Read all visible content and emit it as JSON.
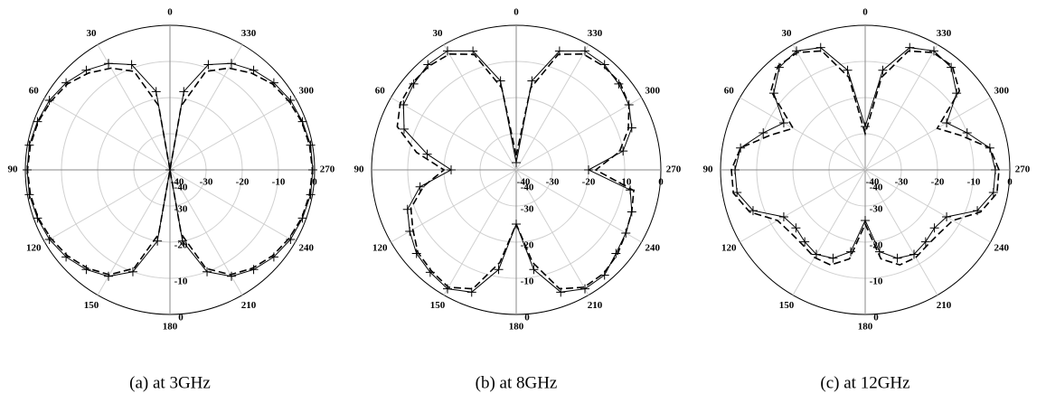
{
  "chart_data": [
    {
      "type": "polar",
      "caption": "(a) at 3GHz",
      "rlim": [
        -40,
        0
      ],
      "rticks": [
        -40,
        -30,
        -20,
        -10,
        0
      ],
      "angle_ticks": [
        0,
        30,
        60,
        90,
        120,
        150,
        180,
        210,
        240,
        270,
        300,
        330
      ],
      "direction": "counterclockwise",
      "theta": [
        0,
        10,
        20,
        30,
        40,
        50,
        60,
        70,
        80,
        90,
        100,
        110,
        120,
        130,
        140,
        150,
        160,
        170,
        180,
        190,
        200,
        210,
        220,
        230,
        240,
        250,
        260,
        270,
        280,
        290,
        300,
        310,
        320,
        330,
        340,
        350
      ],
      "series": [
        {
          "color": "#000000",
          "marker": "+",
          "dash": false,
          "values": [
            -40,
            -18,
            -9,
            -6,
            -4,
            -2.5,
            -1.5,
            -1,
            -0.5,
            -0.5,
            -0.5,
            -1,
            -1.5,
            -2.5,
            -4,
            -6,
            -10,
            -20,
            -40,
            -20,
            -10,
            -6,
            -4,
            -2.5,
            -1.5,
            -1,
            -0.5,
            -0.5,
            -0.5,
            -1,
            -1.5,
            -2.5,
            -4,
            -6,
            -9,
            -18
          ]
        },
        {
          "color": "#000000",
          "marker": null,
          "dash": true,
          "values": [
            -40,
            -22,
            -11,
            -7.5,
            -5,
            -3,
            -2,
            -1.2,
            -0.8,
            -0.6,
            -0.8,
            -1.2,
            -2,
            -3,
            -4.5,
            -6.5,
            -11,
            -22,
            -40,
            -22,
            -11,
            -6.5,
            -4.5,
            -3,
            -2,
            -1.2,
            -0.8,
            -0.6,
            -0.8,
            -1.2,
            -2,
            -3,
            -5,
            -7.5,
            -11,
            -22
          ]
        }
      ]
    },
    {
      "type": "polar",
      "caption": "(b) at 8GHz",
      "rlim": [
        -40,
        0
      ],
      "rticks": [
        -40,
        -30,
        -20,
        -10,
        0
      ],
      "angle_ticks": [
        0,
        30,
        60,
        90,
        120,
        150,
        180,
        210,
        240,
        270,
        300,
        330
      ],
      "direction": "counterclockwise",
      "theta": [
        0,
        10,
        20,
        30,
        40,
        50,
        60,
        70,
        80,
        90,
        100,
        110,
        120,
        130,
        140,
        150,
        160,
        170,
        180,
        190,
        200,
        210,
        220,
        230,
        240,
        250,
        260,
        270,
        280,
        290,
        300,
        310,
        320,
        330,
        340,
        350
      ],
      "series": [
        {
          "color": "#000000",
          "marker": "+",
          "dash": false,
          "values": [
            -38,
            -15,
            -5,
            -2,
            -2,
            -3,
            -4,
            -7,
            -15,
            -22,
            -13,
            -8,
            -6,
            -4,
            -3,
            -2,
            -4,
            -12,
            -25,
            -12,
            -4,
            -2,
            -2,
            -4,
            -5,
            -6,
            -8,
            -20,
            -10,
            -6,
            -4,
            -3,
            -2,
            -2,
            -5,
            -15
          ]
        },
        {
          "color": "#000000",
          "marker": null,
          "dash": true,
          "values": [
            -36,
            -17,
            -6,
            -3,
            -2.5,
            -2.5,
            -3,
            -5,
            -12,
            -20,
            -14,
            -9,
            -7,
            -4.5,
            -3.5,
            -2.5,
            -5,
            -14,
            -25,
            -14,
            -5,
            -2.5,
            -2.5,
            -3.5,
            -5,
            -6,
            -7,
            -18,
            -11,
            -7,
            -4,
            -2.5,
            -2.5,
            -3,
            -6,
            -17
          ]
        }
      ]
    },
    {
      "type": "polar",
      "caption": "(c) at 12GHz",
      "rlim": [
        -40,
        0
      ],
      "rticks": [
        -40,
        -30,
        -20,
        -10,
        0
      ],
      "angle_ticks": [
        0,
        30,
        60,
        90,
        120,
        150,
        180,
        210,
        240,
        270,
        300,
        330
      ],
      "direction": "counterclockwise",
      "theta": [
        0,
        10,
        20,
        30,
        40,
        50,
        60,
        70,
        80,
        90,
        100,
        110,
        120,
        130,
        140,
        150,
        160,
        170,
        180,
        190,
        200,
        210,
        220,
        230,
        240,
        250,
        260,
        270,
        280,
        290,
        300,
        310,
        320,
        330,
        340,
        350
      ],
      "series": [
        {
          "color": "#000000",
          "marker": "+",
          "dash": false,
          "values": [
            -28,
            -12,
            -4,
            -2,
            -3,
            -7,
            -14,
            -10,
            -5,
            -4,
            -4,
            -7,
            -14,
            -15,
            -14,
            -13,
            -14,
            -17,
            -26,
            -17,
            -14,
            -13,
            -14,
            -15,
            -14,
            -7,
            -4,
            -4,
            -5,
            -10,
            -14,
            -7,
            -3,
            -2,
            -4,
            -12
          ]
        },
        {
          "color": "#000000",
          "marker": null,
          "dash": true,
          "values": [
            -30,
            -14,
            -5,
            -2.5,
            -2.5,
            -6,
            -17,
            -12,
            -5,
            -3,
            -3,
            -6,
            -12,
            -13,
            -13,
            -12,
            -12,
            -15,
            -25,
            -15,
            -12,
            -12,
            -13,
            -13,
            -12,
            -6,
            -3,
            -3,
            -5,
            -12,
            -17,
            -6,
            -2.5,
            -2.5,
            -5,
            -14
          ]
        }
      ]
    }
  ]
}
